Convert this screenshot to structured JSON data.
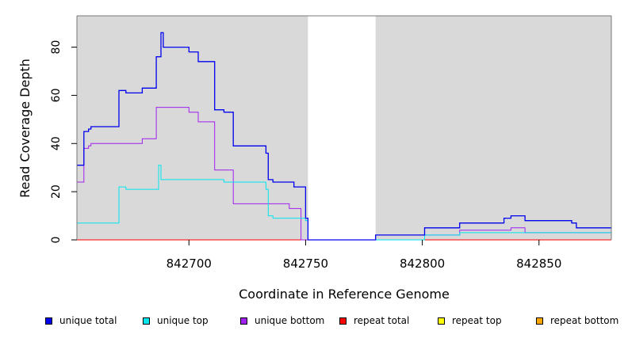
{
  "chart_data": {
    "type": "line",
    "xlabel": "Coordinate in Reference Genome",
    "ylabel": "Read Coverage Depth",
    "xlim": [
      842652,
      842881
    ],
    "ylim": [
      0,
      93
    ],
    "xticks": [
      842700,
      842750,
      842800,
      842850
    ],
    "xtick_labels": [
      "842700",
      "842750",
      "842800",
      "842850"
    ],
    "yticks": [
      0,
      20,
      40,
      60,
      80
    ],
    "ytick_labels": [
      "0",
      "20",
      "40",
      "60",
      "80"
    ],
    "background": "#d9d9d9",
    "shaded_regions": [
      [
        842652,
        842751
      ],
      [
        842780,
        842881
      ]
    ],
    "grid": false,
    "legend_position": "bottom",
    "series": [
      {
        "name": "unique total",
        "color": "#0000ee",
        "width": 1.3,
        "x": [
          842652,
          842655,
          842655,
          842657,
          842657,
          842658,
          842658,
          842670,
          842670,
          842673,
          842673,
          842680,
          842680,
          842686,
          842686,
          842688,
          842688,
          842689,
          842689,
          842700,
          842700,
          842704,
          842704,
          842711,
          842711,
          842715,
          842715,
          842719,
          842719,
          842733,
          842733,
          842734,
          842734,
          842736,
          842736,
          842745,
          842745,
          842750,
          842750,
          842751,
          842751,
          842780,
          842780,
          842801,
          842801,
          842816,
          842816,
          842835,
          842835,
          842838,
          842838,
          842844,
          842844,
          842864,
          842864,
          842866,
          842866,
          842881
        ],
        "y": [
          31,
          31,
          45,
          45,
          46,
          46,
          47,
          47,
          62,
          62,
          61,
          61,
          63,
          63,
          76,
          76,
          86,
          86,
          80,
          80,
          78,
          78,
          74,
          74,
          54,
          54,
          53,
          53,
          39,
          39,
          36,
          36,
          25,
          25,
          24,
          24,
          22,
          22,
          9,
          9,
          0,
          0,
          2,
          2,
          5,
          5,
          7,
          7,
          9,
          9,
          10,
          10,
          8,
          8,
          7,
          7,
          5,
          5
        ]
      },
      {
        "name": "unique top",
        "color": "#00e5ee",
        "width": 1.0,
        "x": [
          842652,
          842670,
          842670,
          842673,
          842673,
          842687,
          842687,
          842688,
          842688,
          842715,
          842715,
          842733,
          842733,
          842734,
          842734,
          842736,
          842736,
          842750,
          842750,
          842751,
          842751,
          842780,
          842780,
          842801,
          842801,
          842816,
          842816,
          842864,
          842864,
          842881
        ],
        "y": [
          7,
          7,
          22,
          22,
          21,
          21,
          31,
          31,
          25,
          25,
          24,
          24,
          21,
          21,
          10,
          10,
          9,
          9,
          8,
          8,
          0,
          0,
          0,
          0,
          2,
          2,
          3,
          3,
          3,
          3
        ]
      },
      {
        "name": "unique bottom",
        "color": "#a020f0",
        "width": 1.0,
        "x": [
          842652,
          842655,
          842655,
          842657,
          842657,
          842658,
          842658,
          842680,
          842680,
          842686,
          842686,
          842700,
          842700,
          842704,
          842704,
          842711,
          842711,
          842719,
          842719,
          842743,
          842743,
          842748,
          842748,
          842751,
          842751,
          842780,
          842780,
          842801,
          842801,
          842816,
          842816,
          842838,
          842838,
          842844,
          842844,
          842881
        ],
        "y": [
          24,
          24,
          38,
          38,
          39,
          39,
          40,
          40,
          42,
          42,
          55,
          55,
          53,
          53,
          49,
          49,
          29,
          29,
          15,
          15,
          13,
          13,
          0,
          0,
          0,
          0,
          0,
          0,
          2,
          2,
          4,
          4,
          5,
          5,
          3,
          3
        ]
      },
      {
        "name": "repeat total",
        "color": "#ff0000",
        "width": 1.0,
        "x": [
          842652,
          842881
        ],
        "y": [
          0,
          0
        ]
      },
      {
        "name": "repeat top",
        "color": "#ffff00",
        "width": 1.0,
        "x": [
          842652,
          842881
        ],
        "y": [
          0,
          0
        ]
      },
      {
        "name": "repeat bottom",
        "color": "#ffa500",
        "width": 1.0,
        "x": [
          842652,
          842881
        ],
        "y": [
          0,
          0
        ]
      }
    ]
  }
}
